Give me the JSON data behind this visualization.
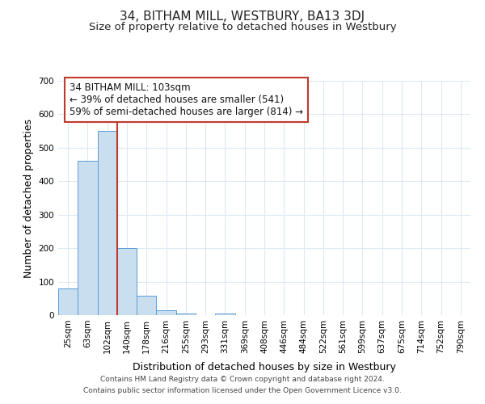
{
  "title": "34, BITHAM MILL, WESTBURY, BA13 3DJ",
  "subtitle": "Size of property relative to detached houses in Westbury",
  "xlabel": "Distribution of detached houses by size in Westbury",
  "ylabel": "Number of detached properties",
  "bin_labels": [
    "25sqm",
    "63sqm",
    "102sqm",
    "140sqm",
    "178sqm",
    "216sqm",
    "255sqm",
    "293sqm",
    "331sqm",
    "369sqm",
    "408sqm",
    "446sqm",
    "484sqm",
    "522sqm",
    "561sqm",
    "599sqm",
    "637sqm",
    "675sqm",
    "714sqm",
    "752sqm",
    "790sqm"
  ],
  "bar_values": [
    80,
    460,
    550,
    200,
    57,
    15,
    5,
    0,
    5,
    0,
    0,
    0,
    0,
    0,
    0,
    0,
    0,
    0,
    0,
    0,
    0
  ],
  "bar_color": "#c9dff0",
  "bar_edge_color": "#5b9bd5",
  "marker_bin_index": 2,
  "marker_color": "#c0392b",
  "annotation_text": "34 BITHAM MILL: 103sqm\n← 39% of detached houses are smaller (541)\n59% of semi-detached houses are larger (814) →",
  "annotation_box_color": "#ffffff",
  "annotation_box_edge_color": "#c0392b",
  "ylim": [
    0,
    700
  ],
  "yticks": [
    0,
    100,
    200,
    300,
    400,
    500,
    600,
    700
  ],
  "footer_line1": "Contains HM Land Registry data © Crown copyright and database right 2024.",
  "footer_line2": "Contains public sector information licensed under the Open Government Licence v3.0.",
  "background_color": "#ffffff",
  "grid_color": "#dce9f5",
  "title_fontsize": 11,
  "subtitle_fontsize": 9.5,
  "axis_label_fontsize": 9,
  "tick_fontsize": 7.5,
  "annotation_fontsize": 8.5,
  "footer_fontsize": 6.5
}
